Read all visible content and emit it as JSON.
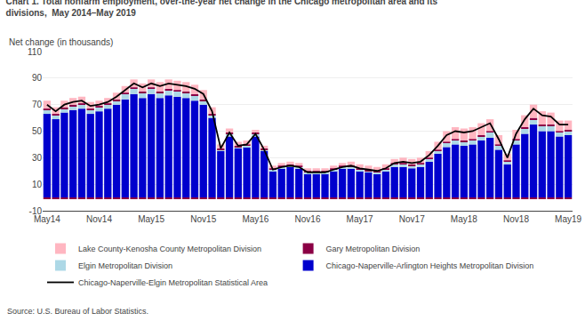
{
  "chart_data": {
    "type": "bar",
    "title": "Chart 1. Total nonfarm employment, over-the-year net change in the Chicago metropolitan area and its\ndivisions,  May 2014–May 2019",
    "ylabel": "Net change (in thousands)",
    "annotations": [
      "Source: U.S. Bureau of Labor Statistics."
    ],
    "categories": [
      "May14",
      null,
      null,
      null,
      null,
      null,
      "Nov14",
      null,
      null,
      null,
      null,
      null,
      "May15",
      null,
      null,
      null,
      null,
      null,
      "Nov15",
      null,
      null,
      null,
      null,
      null,
      "May16",
      null,
      null,
      null,
      null,
      null,
      "Nov16",
      null,
      null,
      null,
      null,
      null,
      "May17",
      null,
      null,
      null,
      null,
      null,
      "Nov17",
      null,
      null,
      null,
      null,
      null,
      "May18",
      null,
      null,
      null,
      null,
      null,
      "Nov18",
      null,
      null,
      null,
      null,
      null,
      "May19"
    ],
    "series": [
      {
        "name": "Chicago-Naperville-Arlington Heights Metropolitan Division",
        "color": "#0000CD",
        "type": "bar",
        "values": [
          63,
          59,
          64,
          66,
          67,
          63,
          65,
          67,
          70,
          74,
          78,
          75,
          78,
          75,
          77,
          76,
          75,
          73,
          70,
          60,
          35,
          46,
          37,
          38,
          46,
          35,
          20,
          22,
          23,
          22,
          18,
          18,
          18,
          20,
          22,
          22,
          20,
          19,
          18,
          20,
          23,
          23,
          22,
          23,
          27,
          33,
          38,
          40,
          39,
          40,
          43,
          45,
          36,
          25,
          40,
          48,
          55,
          50,
          50,
          46,
          47
        ]
      },
      {
        "name": "Elgin Metropolitan Division",
        "color": "#ADD8E6",
        "type": "bar",
        "values": [
          3,
          3,
          3,
          3,
          3,
          3,
          3,
          3,
          3,
          4,
          4,
          4,
          4,
          4,
          4,
          4,
          4,
          4,
          3,
          2,
          1,
          2,
          1,
          1,
          2,
          1,
          1,
          1,
          1,
          1,
          1,
          1,
          1,
          1,
          1,
          1,
          1,
          1,
          1,
          1,
          2,
          2,
          2,
          2,
          2,
          2,
          3,
          3,
          3,
          3,
          3,
          4,
          3,
          2,
          3,
          4,
          4,
          4,
          4,
          3,
          3
        ]
      },
      {
        "name": "Gary Metropolitan Division",
        "color": "#8B0045",
        "type": "bar",
        "values": [
          1,
          1,
          1,
          1,
          1,
          1,
          1,
          1,
          1,
          1,
          1,
          1,
          1,
          1,
          1,
          1,
          1,
          1,
          1,
          1,
          1,
          1,
          1,
          1,
          1,
          1,
          1,
          1,
          1,
          1,
          1,
          1,
          1,
          1,
          1,
          1,
          1,
          1,
          1,
          1,
          1,
          1,
          1,
          1,
          1,
          1,
          1,
          1,
          1,
          1,
          1,
          1,
          1,
          1,
          1,
          1,
          1,
          1,
          1,
          1,
          1
        ]
      },
      {
        "name": "Lake County-Kenosha County Metropolitan Division",
        "color": "#FFB6C1",
        "type": "bar",
        "values": [
          6,
          5,
          5,
          5,
          5,
          5,
          4,
          4,
          5,
          5,
          6,
          6,
          6,
          7,
          7,
          7,
          7,
          7,
          7,
          5,
          3,
          3,
          3,
          3,
          2,
          2,
          2,
          2,
          2,
          2,
          2,
          2,
          2,
          2,
          2,
          3,
          3,
          3,
          3,
          3,
          3,
          4,
          4,
          4,
          5,
          6,
          8,
          9,
          9,
          9,
          9,
          9,
          7,
          5,
          7,
          9,
          10,
          10,
          9,
          8,
          7
        ]
      },
      {
        "name": "Gary Metropolitan Division",
        "color": "#8B0045",
        "type": "bar",
        "values": [
          -1,
          -1,
          -1,
          -1,
          -1,
          -1,
          -1,
          -1,
          -1,
          -1,
          -1,
          -1,
          -1,
          -1,
          -1,
          -1,
          -1,
          -1,
          -1,
          -1,
          -1,
          -1,
          -1,
          -1,
          -1,
          -1,
          -1,
          -1,
          -1,
          -1,
          -1,
          -1,
          -1,
          -1,
          -1,
          -1,
          -1,
          -1,
          -1,
          -1,
          -1,
          -1,
          -1,
          -1,
          -1,
          -1,
          -1,
          -1,
          -1,
          -1,
          -1,
          -1,
          -1,
          -1,
          -1,
          -1,
          -1,
          -1,
          -1,
          -1,
          -1
        ]
      },
      {
        "name": "Chicago-Naperville-Elgin Metropolitan Statistical Area",
        "color": "#000000",
        "type": "line",
        "values": [
          70,
          65,
          70,
          72,
          73,
          69,
          70,
          72,
          76,
          81,
          86,
          83,
          86,
          84,
          86,
          85,
          84,
          82,
          78,
          65,
          37,
          49,
          39,
          40,
          48,
          36,
          21,
          23,
          24,
          23,
          19,
          19,
          19,
          21,
          23,
          24,
          22,
          21,
          20,
          22,
          26,
          27,
          26,
          27,
          32,
          39,
          47,
          50,
          49,
          50,
          53,
          56,
          44,
          30,
          48,
          59,
          67,
          62,
          61,
          55,
          55
        ]
      }
    ],
    "ylim": [
      -10,
      110
    ],
    "yticks": [
      -10,
      10,
      30,
      50,
      70,
      90,
      110
    ],
    "grid": true,
    "stacked": true,
    "legend": "bottom"
  }
}
